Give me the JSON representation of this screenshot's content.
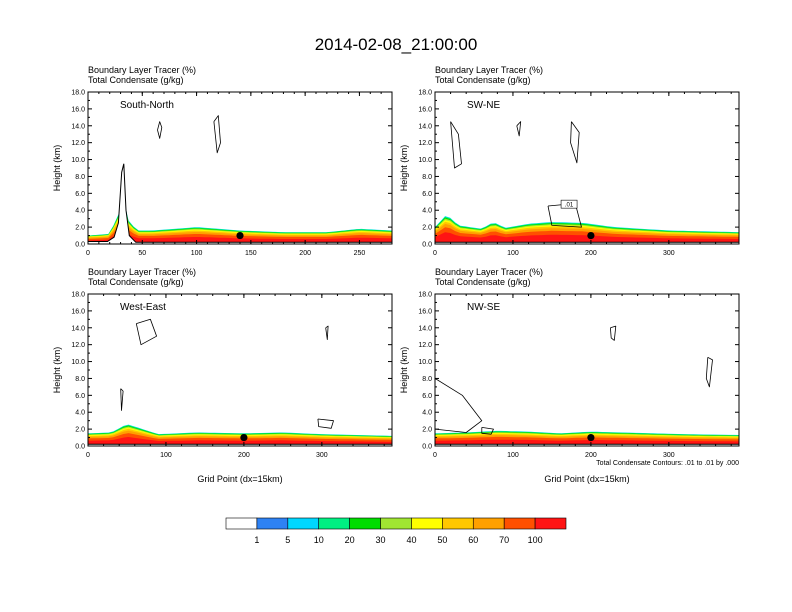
{
  "title": "2014-02-08_21:00:00",
  "header_lines": [
    "Boundary Layer Tracer    (%)",
    "Total Condensate    (g/kg)"
  ],
  "colors": {
    "colorbar": [
      "#ffffff",
      "#2e82f4",
      "#00d7ff",
      "#00f082",
      "#00dc00",
      "#a0e632",
      "#ffff00",
      "#ffc800",
      "#ffa000",
      "#ff5000",
      "#ff1414"
    ],
    "contour": "#000000",
    "terrain": "#000000"
  },
  "chart_data": [
    {
      "type": "heatmap",
      "label": "South-North",
      "xlim": [
        0,
        280
      ],
      "ylim": [
        0,
        18
      ],
      "x_ticks": [
        0,
        50,
        100,
        150,
        200,
        250
      ],
      "y_ticks": [
        0,
        2,
        4,
        6,
        8,
        10,
        12,
        14,
        16,
        18
      ],
      "y_tick_labels": [
        "0.0",
        "2.0",
        "4.0",
        "6.0",
        "8.0",
        "10.0",
        "12.0",
        "14.0",
        "16.0",
        "18.0"
      ],
      "ylabel": "Height (km)",
      "xlabel": "",
      "bl_top": [
        [
          0,
          1.0
        ],
        [
          20,
          1.2
        ],
        [
          28,
          3.5
        ],
        [
          32,
          6.0
        ],
        [
          36,
          3.0
        ],
        [
          45,
          1.6
        ],
        [
          60,
          1.6
        ],
        [
          100,
          2.0
        ],
        [
          120,
          1.8
        ],
        [
          140,
          1.6
        ],
        [
          180,
          1.4
        ],
        [
          220,
          1.4
        ],
        [
          250,
          1.8
        ],
        [
          280,
          1.6
        ]
      ],
      "terrain": [
        [
          0,
          0.3
        ],
        [
          18,
          0.3
        ],
        [
          24,
          0.8
        ],
        [
          28,
          2.5
        ],
        [
          31,
          8.5
        ],
        [
          33,
          9.5
        ],
        [
          35,
          4.0
        ],
        [
          38,
          1.0
        ],
        [
          44,
          0.2
        ],
        [
          280,
          0.2
        ]
      ],
      "contours": [
        [
          [
            64,
            13.5
          ],
          [
            66,
            14.5
          ],
          [
            68,
            13.8
          ],
          [
            66,
            12.5
          ],
          [
            64,
            13.5
          ]
        ],
        [
          [
            116,
            14.5
          ],
          [
            120,
            15.2
          ],
          [
            122,
            12.0
          ],
          [
            119,
            10.8
          ],
          [
            116,
            14.5
          ]
        ]
      ],
      "marker": [
        140,
        1.0
      ]
    },
    {
      "type": "heatmap",
      "label": "SW-NE",
      "xlim": [
        0,
        390
      ],
      "ylim": [
        0,
        18
      ],
      "x_ticks": [
        0,
        100,
        200,
        300
      ],
      "y_ticks": [
        0,
        2,
        4,
        6,
        8,
        10,
        12,
        14,
        16,
        18
      ],
      "y_tick_labels": [
        "0.0",
        "2.0",
        "4.0",
        "6.0",
        "8.0",
        "10.0",
        "12.0",
        "14.0",
        "16.0",
        "18.0"
      ],
      "ylabel": "Height (km)",
      "xlabel": "",
      "annotation": ".01",
      "bl_top": [
        [
          0,
          2.0
        ],
        [
          15,
          3.5
        ],
        [
          30,
          2.2
        ],
        [
          60,
          1.8
        ],
        [
          75,
          2.6
        ],
        [
          90,
          1.9
        ],
        [
          120,
          2.4
        ],
        [
          150,
          2.6
        ],
        [
          190,
          2.5
        ],
        [
          230,
          2.0
        ],
        [
          300,
          1.6
        ],
        [
          390,
          1.4
        ]
      ],
      "terrain": [
        [
          0,
          0.2
        ],
        [
          390,
          0.2
        ]
      ],
      "contours": [
        [
          [
            20,
            14.5
          ],
          [
            30,
            13.0
          ],
          [
            34,
            9.5
          ],
          [
            25,
            9.0
          ],
          [
            20,
            14.5
          ]
        ],
        [
          [
            105,
            14.0
          ],
          [
            110,
            14.5
          ],
          [
            108,
            12.8
          ],
          [
            105,
            14.0
          ]
        ],
        [
          [
            175,
            14.5
          ],
          [
            185,
            13.2
          ],
          [
            182,
            9.6
          ],
          [
            174,
            12.0
          ],
          [
            175,
            14.5
          ]
        ],
        [
          [
            145,
            4.5
          ],
          [
            180,
            4.8
          ],
          [
            188,
            2.0
          ],
          [
            150,
            2.2
          ],
          [
            145,
            4.5
          ]
        ]
      ],
      "marker": [
        200,
        1.0
      ]
    },
    {
      "type": "heatmap",
      "label": "West-East",
      "xlim": [
        0,
        390
      ],
      "ylim": [
        0,
        18
      ],
      "x_ticks": [
        0,
        100,
        200,
        300
      ],
      "y_ticks": [
        0,
        2,
        4,
        6,
        8,
        10,
        12,
        14,
        16,
        18
      ],
      "y_tick_labels": [
        "0.0",
        "2.0",
        "4.0",
        "6.0",
        "8.0",
        "10.0",
        "12.0",
        "14.0",
        "16.0",
        "18.0"
      ],
      "ylabel": "Height (km)",
      "xlabel": "Grid Point (dx=15km)",
      "bl_top": [
        [
          0,
          1.5
        ],
        [
          30,
          1.6
        ],
        [
          50,
          2.6
        ],
        [
          70,
          2.0
        ],
        [
          90,
          1.4
        ],
        [
          140,
          1.6
        ],
        [
          200,
          1.5
        ],
        [
          250,
          1.6
        ],
        [
          300,
          1.4
        ],
        [
          390,
          1.2
        ]
      ],
      "terrain": [
        [
          0,
          0.2
        ],
        [
          390,
          0.2
        ]
      ],
      "contours": [
        [
          [
            62,
            14.5
          ],
          [
            80,
            15.0
          ],
          [
            88,
            13.0
          ],
          [
            68,
            12.0
          ],
          [
            62,
            14.5
          ]
        ],
        [
          [
            42,
            6.8
          ],
          [
            45,
            6.5
          ],
          [
            43,
            4.2
          ],
          [
            42,
            6.8
          ]
        ],
        [
          [
            295,
            3.2
          ],
          [
            315,
            3.0
          ],
          [
            312,
            2.1
          ],
          [
            296,
            2.3
          ],
          [
            295,
            3.2
          ]
        ],
        [
          [
            305,
            14.0
          ],
          [
            308,
            14.2
          ],
          [
            307,
            12.6
          ],
          [
            305,
            14.0
          ]
        ]
      ],
      "marker": [
        200,
        1.0
      ]
    },
    {
      "type": "heatmap",
      "label": "NW-SE",
      "xlim": [
        0,
        390
      ],
      "ylim": [
        0,
        18
      ],
      "x_ticks": [
        0,
        100,
        200,
        300
      ],
      "y_ticks": [
        0,
        2,
        4,
        6,
        8,
        10,
        12,
        14,
        16,
        18
      ],
      "y_tick_labels": [
        "0.0",
        "2.0",
        "4.0",
        "6.0",
        "8.0",
        "10.0",
        "12.0",
        "14.0",
        "16.0",
        "18.0"
      ],
      "ylabel": "Height (km)",
      "xlabel": "Grid Point (dx=15km)",
      "footnote": "Total Condensate Contours: .01 to .01 by .000",
      "bl_top": [
        [
          0,
          1.5
        ],
        [
          40,
          1.6
        ],
        [
          80,
          1.8
        ],
        [
          120,
          1.7
        ],
        [
          160,
          1.5
        ],
        [
          200,
          1.7
        ],
        [
          240,
          1.6
        ],
        [
          280,
          1.5
        ],
        [
          320,
          1.4
        ],
        [
          390,
          1.3
        ]
      ],
      "terrain": [
        [
          0,
          0.2
        ],
        [
          390,
          0.2
        ]
      ],
      "contours": [
        [
          [
            0,
            8.0
          ],
          [
            35,
            6.0
          ],
          [
            60,
            3.0
          ],
          [
            40,
            1.6
          ],
          [
            0,
            2.0
          ],
          [
            0,
            8.0
          ]
        ],
        [
          [
            225,
            14.0
          ],
          [
            232,
            14.2
          ],
          [
            230,
            12.5
          ],
          [
            226,
            12.8
          ],
          [
            225,
            14.0
          ]
        ],
        [
          [
            350,
            10.5
          ],
          [
            356,
            10.2
          ],
          [
            352,
            7.0
          ],
          [
            348,
            8.0
          ],
          [
            350,
            10.5
          ]
        ],
        [
          [
            60,
            2.2
          ],
          [
            75,
            2.0
          ],
          [
            72,
            1.4
          ],
          [
            60,
            1.5
          ],
          [
            60,
            2.2
          ]
        ]
      ],
      "marker": [
        200,
        1.0
      ]
    }
  ],
  "colorbar": {
    "labels": [
      "1",
      "5",
      "10",
      "20",
      "30",
      "40",
      "50",
      "60",
      "70",
      "100"
    ]
  }
}
